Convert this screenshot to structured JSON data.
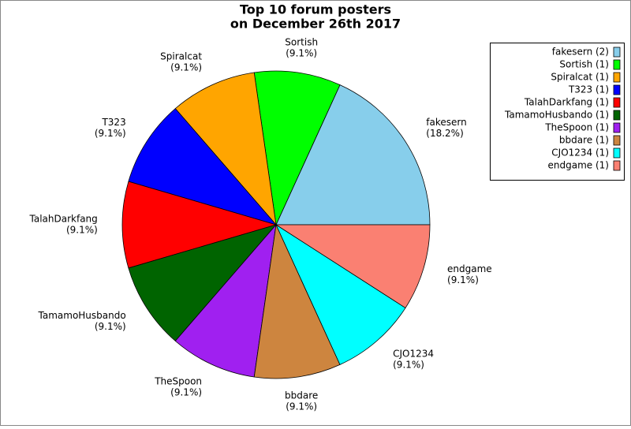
{
  "chart_data": {
    "type": "pie",
    "title": [
      "Top 10 forum posters",
      "on December 26th 2017"
    ],
    "categories": [
      "fakesern",
      "Sortish",
      "Spiralcat",
      "T323",
      "TalahDarkfang",
      "TamamoHusbando",
      "TheSpoon",
      "bbdare",
      "CJO1234",
      "endgame"
    ],
    "values": [
      18.2,
      9.1,
      9.1,
      9.1,
      9.1,
      9.1,
      9.1,
      9.1,
      9.1,
      9.1
    ],
    "value_labels": [
      "(18.2%)",
      "(9.1%)",
      "(9.1%)",
      "(9.1%)",
      "(9.1%)",
      "(9.1%)",
      "(9.1%)",
      "(9.1%)",
      "(9.1%)",
      "(9.1%)"
    ],
    "colors": [
      "#87ceeb",
      "#00ff00",
      "#ffa500",
      "#0000ff",
      "#ff0000",
      "#006400",
      "#a020f0",
      "#cd853f",
      "#00ffff",
      "#fa8072"
    ],
    "legend_labels": [
      "fakesern (2)",
      "Sortish (1)",
      "Spiralcat (1)",
      "T323 (1)",
      "TalahDarkfang (1)",
      "TamamoHusbando (1)",
      "TheSpoon (1)",
      "bbdare (1)",
      "CJO1234 (1)",
      "endgame (1)"
    ],
    "legend": "upper right"
  }
}
